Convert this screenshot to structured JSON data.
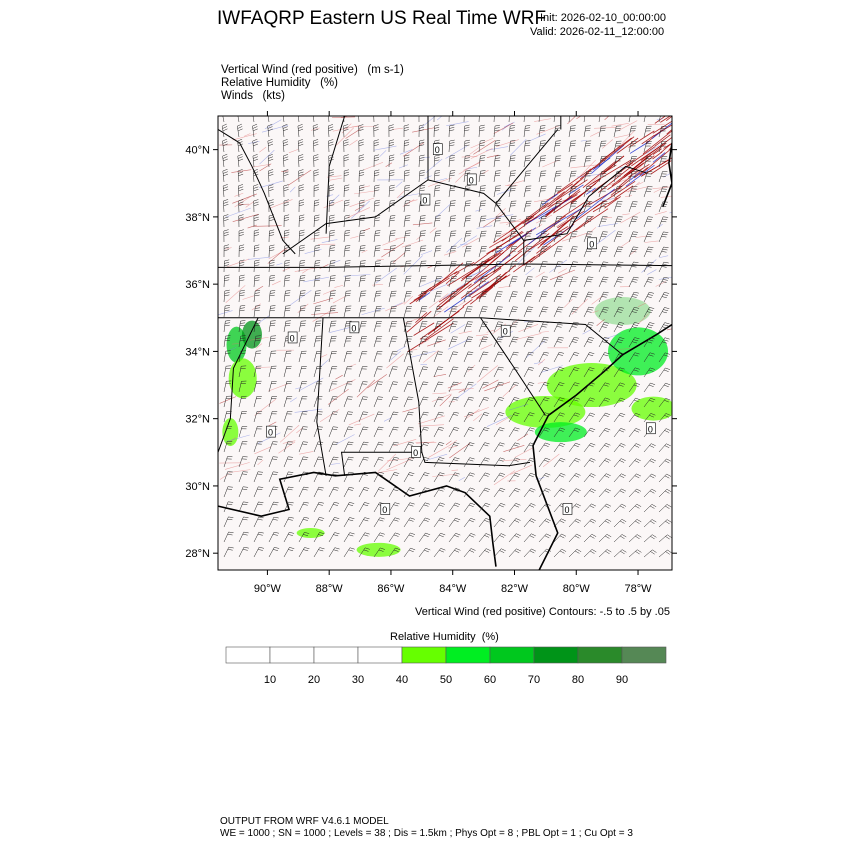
{
  "header": {
    "title": "IWFAQRP Eastern US Real Time WRF",
    "init": "Init: 2026-02-10_00:00:00",
    "valid": "Valid: 2026-02-11_12:00:00"
  },
  "fields": [
    {
      "name": "Vertical Wind (red positive)",
      "unit": "(m s-1)"
    },
    {
      "name": "Relative Humidity",
      "unit": "(%)"
    },
    {
      "name": "Winds",
      "unit": "(kts)"
    }
  ],
  "map": {
    "lat_range": [
      27.5,
      41
    ],
    "lon_range": [
      -91.6,
      -76.9
    ],
    "lat_ticks": [
      "40°N",
      "38°N",
      "36°N",
      "34°N",
      "32°N",
      "30°N",
      "28°N"
    ],
    "lon_ticks": [
      "90°W",
      "88°W",
      "86°W",
      "84°W",
      "82°W",
      "80°W",
      "78°W"
    ],
    "contour_note": "Vertical Wind (red positive) Contours: -.5 to .5 by .05",
    "zero_label": "0",
    "colors": {
      "updraft": "#a00000",
      "downdraft": "#2030d0",
      "barb": "#222222",
      "land_bg": "#fbf7f7"
    }
  },
  "colorbar": {
    "title": "Relative Humidity",
    "unit": "(%)",
    "labels": [
      "10",
      "20",
      "30",
      "40",
      "50",
      "60",
      "70",
      "80",
      "90"
    ],
    "colors": [
      "#ffffff",
      "#ffffff",
      "#ffffff",
      "#ffffff",
      "#66ff00",
      "#00ee22",
      "#00c81e",
      "#009418",
      "#2a8a2a",
      "#558855"
    ]
  },
  "footer": {
    "line1": "OUTPUT FROM WRF V4.6.1 MODEL",
    "line2": "WE = 1000 ; SN = 1000 ; Levels = 38 ; Dis = 1.5km ; Phys Opt = 8 ; PBL Opt = 1 ; Cu Opt = 3"
  }
}
